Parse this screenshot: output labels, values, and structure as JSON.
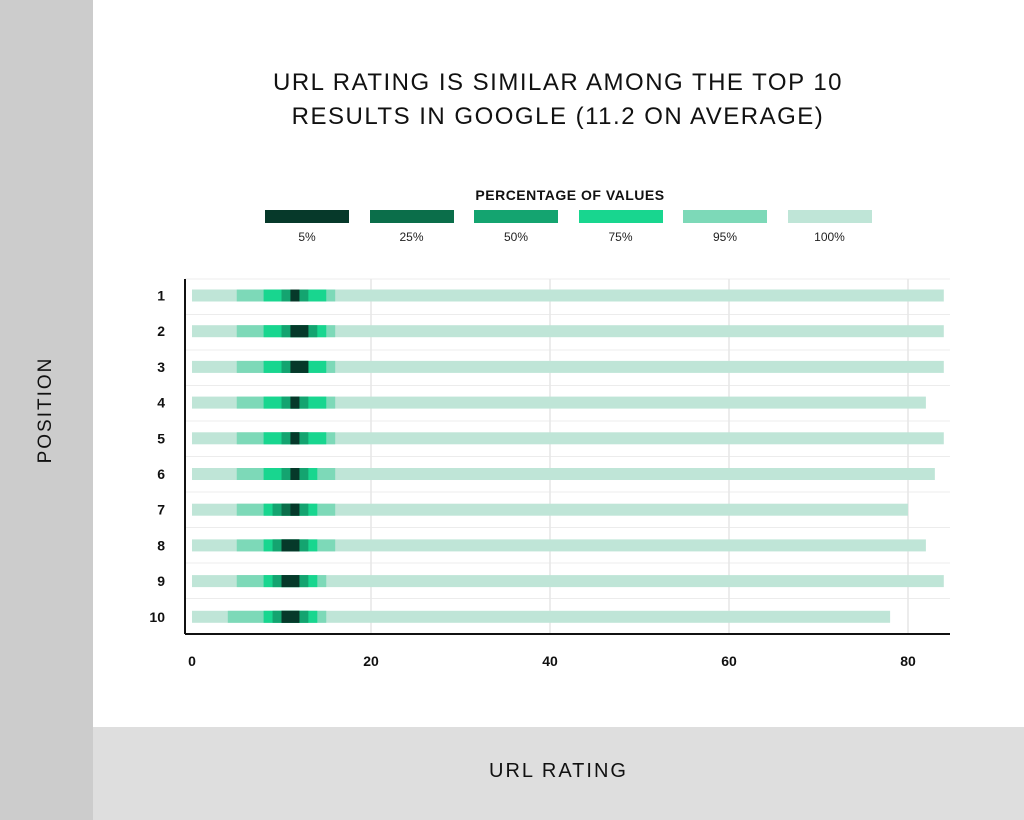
{
  "title_lines": [
    "URL RATING IS SIMILAR AMONG THE TOP 10",
    "RESULTS IN GOOGLE (11.2 ON AVERAGE)"
  ],
  "legend": {
    "title": "PERCENTAGE OF VALUES",
    "items": [
      {
        "label": "5%",
        "color": "#06392a"
      },
      {
        "label": "25%",
        "color": "#0b6e4a"
      },
      {
        "label": "50%",
        "color": "#14a470"
      },
      {
        "label": "75%",
        "color": "#18d68f"
      },
      {
        "label": "95%",
        "color": "#7dd9b8"
      },
      {
        "label": "100%",
        "color": "#bfe5d7"
      }
    ]
  },
  "chart_data": {
    "type": "bar",
    "orientation": "horizontal",
    "title": "URL RATING IS SIMILAR AMONG THE TOP 10 RESULTS IN GOOGLE (11.2 ON AVERAGE)",
    "xlabel": "URL RATING",
    "ylabel": "POSITION",
    "xlim": [
      0,
      85
    ],
    "xticks": [
      0,
      20,
      40,
      60,
      80
    ],
    "grid": true,
    "categories": [
      "1",
      "2",
      "3",
      "4",
      "5",
      "6",
      "7",
      "8",
      "9",
      "10"
    ],
    "bands_order": [
      "100%",
      "95%",
      "75%",
      "50%",
      "25%",
      "5%"
    ],
    "rows": [
      {
        "position": "1",
        "bands": [
          [
            0,
            84
          ],
          [
            5,
            16
          ],
          [
            8,
            15
          ],
          [
            10,
            13
          ],
          [
            11,
            12
          ],
          [
            11,
            12
          ]
        ]
      },
      {
        "position": "2",
        "bands": [
          [
            0,
            84
          ],
          [
            5,
            16
          ],
          [
            8,
            15
          ],
          [
            10,
            14
          ],
          [
            11,
            13
          ],
          [
            11,
            13
          ]
        ]
      },
      {
        "position": "3",
        "bands": [
          [
            0,
            84
          ],
          [
            5,
            16
          ],
          [
            8,
            15
          ],
          [
            10,
            13
          ],
          [
            11,
            13
          ],
          [
            11,
            13
          ]
        ]
      },
      {
        "position": "4",
        "bands": [
          [
            0,
            82
          ],
          [
            5,
            16
          ],
          [
            8,
            15
          ],
          [
            10,
            13
          ],
          [
            11,
            12
          ],
          [
            11,
            12
          ]
        ]
      },
      {
        "position": "5",
        "bands": [
          [
            0,
            84
          ],
          [
            5,
            16
          ],
          [
            8,
            15
          ],
          [
            10,
            13
          ],
          [
            11,
            12
          ],
          [
            11,
            12
          ]
        ]
      },
      {
        "position": "6",
        "bands": [
          [
            0,
            83
          ],
          [
            5,
            16
          ],
          [
            8,
            14
          ],
          [
            10,
            13
          ],
          [
            11,
            12
          ],
          [
            11,
            12
          ]
        ]
      },
      {
        "position": "7",
        "bands": [
          [
            0,
            80
          ],
          [
            5,
            16
          ],
          [
            8,
            14
          ],
          [
            9,
            13
          ],
          [
            10,
            12
          ],
          [
            11,
            12
          ]
        ]
      },
      {
        "position": "8",
        "bands": [
          [
            0,
            82
          ],
          [
            5,
            16
          ],
          [
            8,
            14
          ],
          [
            9,
            13
          ],
          [
            10,
            12
          ],
          [
            10,
            12
          ]
        ]
      },
      {
        "position": "9",
        "bands": [
          [
            0,
            84
          ],
          [
            5,
            15
          ],
          [
            8,
            14
          ],
          [
            9,
            13
          ],
          [
            10,
            12
          ],
          [
            10,
            12
          ]
        ]
      },
      {
        "position": "10",
        "bands": [
          [
            0,
            78
          ],
          [
            4,
            15
          ],
          [
            8,
            14
          ],
          [
            9,
            13
          ],
          [
            10,
            12
          ],
          [
            10,
            12
          ]
        ]
      }
    ]
  }
}
